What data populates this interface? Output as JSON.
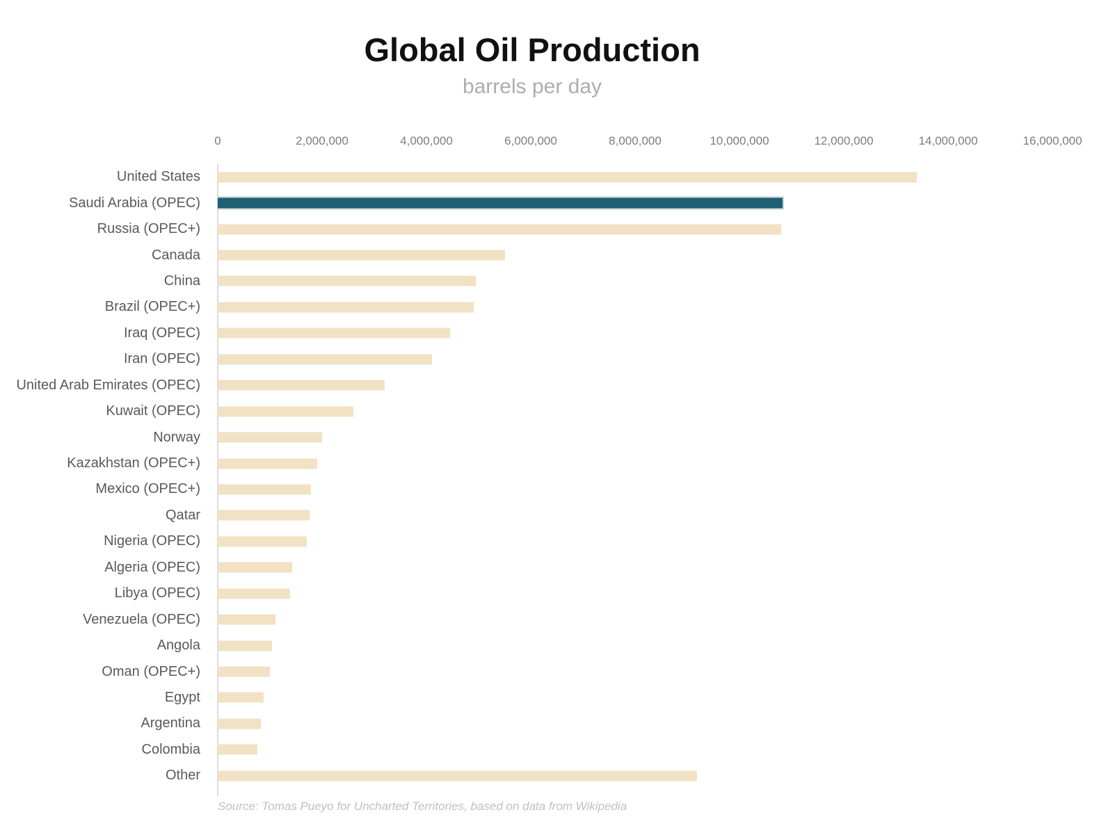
{
  "chart_data": {
    "type": "bar",
    "orientation": "horizontal",
    "title": "Global Oil Production",
    "subtitle": "barrels per day",
    "source": "Source: Tomas Pueyo for Uncharted Territories, based on data from Wikipedia",
    "xlabel": "",
    "ylabel": "",
    "xlim": [
      0,
      16000000
    ],
    "grid": false,
    "legend": false,
    "x_tick_labels": [
      "0",
      "2,000,000",
      "4,000,000",
      "6,000,000",
      "8,000,000",
      "10,000,000",
      "12,000,000",
      "14,000,000",
      "16,000,000"
    ],
    "categories": [
      "United States",
      "Saudi Arabia (OPEC)",
      "Russia (OPEC+)",
      "Canada",
      "China",
      "Brazil (OPEC+)",
      "Iraq (OPEC)",
      "Iran (OPEC)",
      "United Arab Emirates (OPEC)",
      "Kuwait (OPEC)",
      "Norway",
      "Kazakhstan (OPEC+)",
      "Mexico (OPEC+)",
      "Qatar",
      "Nigeria (OPEC)",
      "Algeria (OPEC)",
      "Libya (OPEC)",
      "Venezuela (OPEC)",
      "Angola",
      "Oman (OPEC+)",
      "Egypt",
      "Argentina",
      "Colombia",
      "Other"
    ],
    "values": [
      13400000,
      10850000,
      10800000,
      5500000,
      4950000,
      4900000,
      4450000,
      4100000,
      3200000,
      2600000,
      2000000,
      1900000,
      1780000,
      1760000,
      1710000,
      1420000,
      1390000,
      1100000,
      1040000,
      1000000,
      880000,
      830000,
      760000,
      9180000
    ],
    "highlight_category": "Saudi Arabia (OPEC)",
    "colors": {
      "bar": "#f1e2c4",
      "highlight": "#1f5f73",
      "axis_line": "#dcdcdc"
    }
  }
}
